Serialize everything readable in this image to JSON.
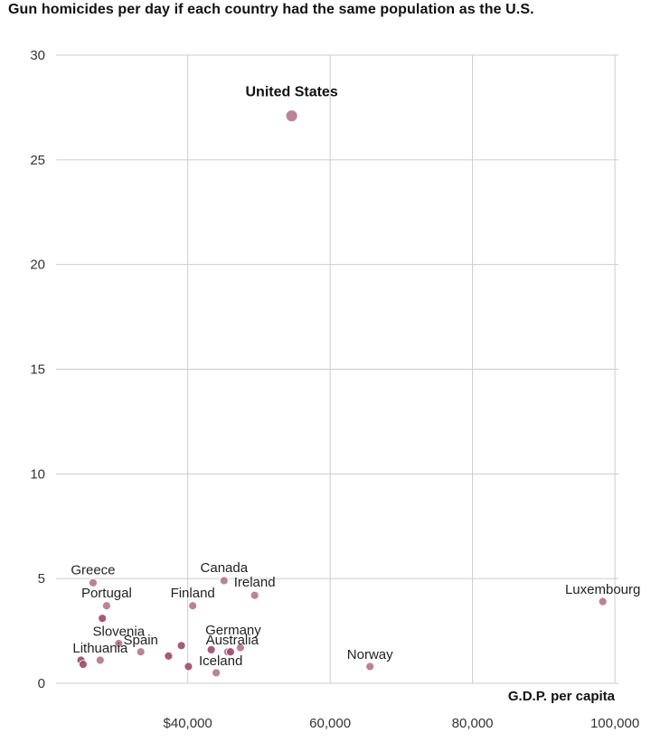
{
  "chart_data": {
    "type": "scatter",
    "title": "Gun homicides per day if each country had the same population as the U.S.",
    "xlabel": "G.D.P. per capita",
    "ylabel": "",
    "xlim": [
      21500,
      100500
    ],
    "ylim": [
      0,
      30
    ],
    "x_ticks": [
      {
        "value": 40000,
        "label": "$40,000"
      },
      {
        "value": 60000,
        "label": "60,000"
      },
      {
        "value": 80000,
        "label": "80,000"
      },
      {
        "value": 100000,
        "label": "100,000"
      }
    ],
    "y_ticks": [
      {
        "value": 0,
        "label": "0"
      },
      {
        "value": 5,
        "label": "5"
      },
      {
        "value": 10,
        "label": "10"
      },
      {
        "value": 15,
        "label": "15"
      },
      {
        "value": 20,
        "label": "20"
      },
      {
        "value": 25,
        "label": "25"
      },
      {
        "value": 30,
        "label": "30"
      }
    ],
    "grid": true,
    "colors": {
      "point": "#b5788f",
      "point_dark": "#9c4e6c",
      "grid": "#cccccc"
    },
    "points": [
      {
        "label": "United States",
        "x": 54600,
        "y": 27.1,
        "highlight": true
      },
      {
        "label": "Luxembourg",
        "x": 98300,
        "y": 3.9
      },
      {
        "label": "Norway",
        "x": 65600,
        "y": 0.8
      },
      {
        "label": "Canada",
        "x": 45100,
        "y": 4.9
      },
      {
        "label": "Ireland",
        "x": 49400,
        "y": 4.2
      },
      {
        "label": "Finland",
        "x": 40700,
        "y": 3.7
      },
      {
        "label": "Greece",
        "x": 26700,
        "y": 4.8
      },
      {
        "label": "Portugal",
        "x": 28600,
        "y": 3.7
      },
      {
        "label": "Slovenia",
        "x": 30300,
        "y": 1.9
      },
      {
        "label": "Spain",
        "x": 33400,
        "y": 1.5
      },
      {
        "label": "Lithuania",
        "x": 27700,
        "y": 1.1
      },
      {
        "label": "Germany",
        "x": 47400,
        "y": 1.7
      },
      {
        "label": "Australia",
        "x": 45600,
        "y": 1.5
      },
      {
        "label": "Iceland",
        "x": 44000,
        "y": 0.5
      },
      {
        "label": "",
        "x": 28000,
        "y": 3.1
      },
      {
        "label": "",
        "x": 25000,
        "y": 1.1
      },
      {
        "label": "",
        "x": 25300,
        "y": 0.9
      },
      {
        "label": "",
        "x": 37300,
        "y": 1.3
      },
      {
        "label": "",
        "x": 39100,
        "y": 1.8
      },
      {
        "label": "",
        "x": 40100,
        "y": 0.8
      },
      {
        "label": "",
        "x": 43300,
        "y": 1.6
      },
      {
        "label": "",
        "x": 46000,
        "y": 1.5
      }
    ]
  }
}
